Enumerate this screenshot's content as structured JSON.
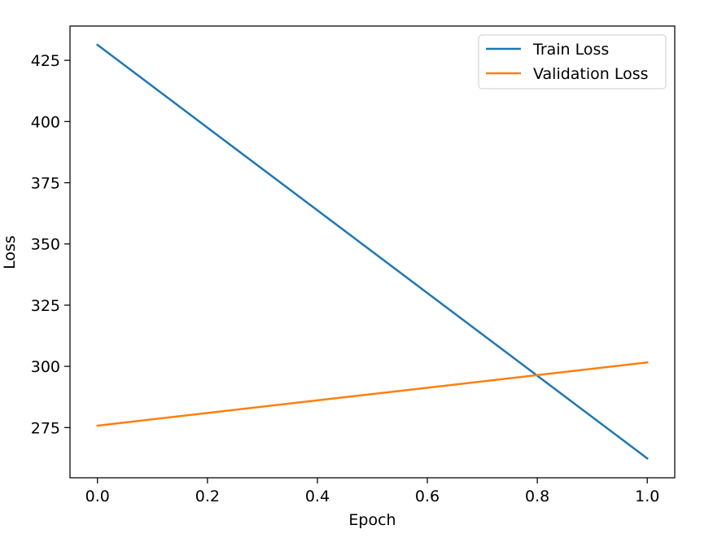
{
  "chart_data": {
    "type": "line",
    "title": "",
    "xlabel": "Epoch",
    "ylabel": "Loss",
    "xlim": [
      -0.05,
      1.05
    ],
    "ylim": [
      254.5,
      439.0
    ],
    "xticks": [
      0.0,
      0.2,
      0.4,
      0.6,
      0.8,
      1.0
    ],
    "xtick_labels": [
      "0.0",
      "0.2",
      "0.4",
      "0.6",
      "0.8",
      "1.0"
    ],
    "yticks": [
      275,
      300,
      325,
      350,
      375,
      400,
      425
    ],
    "ytick_labels": [
      "275",
      "300",
      "325",
      "350",
      "375",
      "400",
      "425"
    ],
    "grid": false,
    "legend_position": "top-right",
    "series": [
      {
        "name": "Train Loss",
        "color": "#1f77b4",
        "x": [
          0,
          1
        ],
        "y": [
          431.3,
          262.4
        ]
      },
      {
        "name": "Validation Loss",
        "color": "#ff7f0e",
        "x": [
          0,
          1
        ],
        "y": [
          275.8,
          301.6
        ]
      }
    ]
  }
}
